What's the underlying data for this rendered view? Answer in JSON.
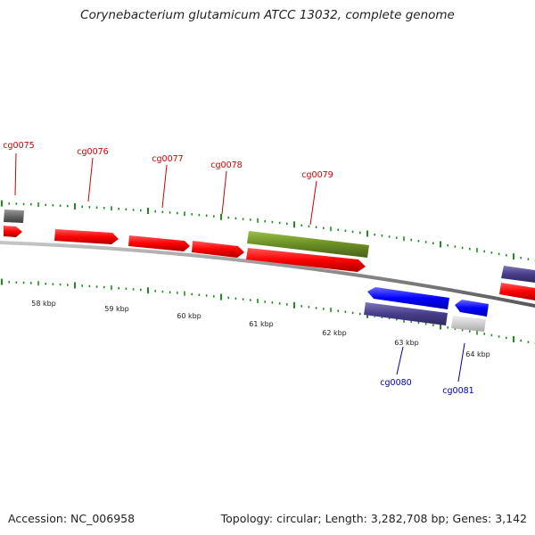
{
  "title": "Corynebacterium glutamicum ATCC 13032, complete genome",
  "footer": {
    "accession": "Accession: NC_006958",
    "stats": "Topology: circular; Length: 3,282,708 bp; Genes: 3,142"
  },
  "colors": {
    "forward_gene": "#ff0000",
    "forward_region": "#6b8e23",
    "reverse_gene": "#0000ff",
    "reverse_other": "#483d8b",
    "tick_marks": "#228b22",
    "backbone": "#888888",
    "label_forward": "#cc0000",
    "label_reverse": "#0000aa"
  },
  "scale_labels": [
    "58 kbp",
    "59 kbp",
    "60 kbp",
    "61 kbp",
    "62 kbp",
    "63 kbp",
    "64 kbp"
  ],
  "gene_labels": {
    "forward": [
      "cg0075",
      "cg0076",
      "cg0077",
      "cg0078",
      "cg0079"
    ],
    "reverse": [
      "cg0080",
      "cg0081"
    ]
  }
}
